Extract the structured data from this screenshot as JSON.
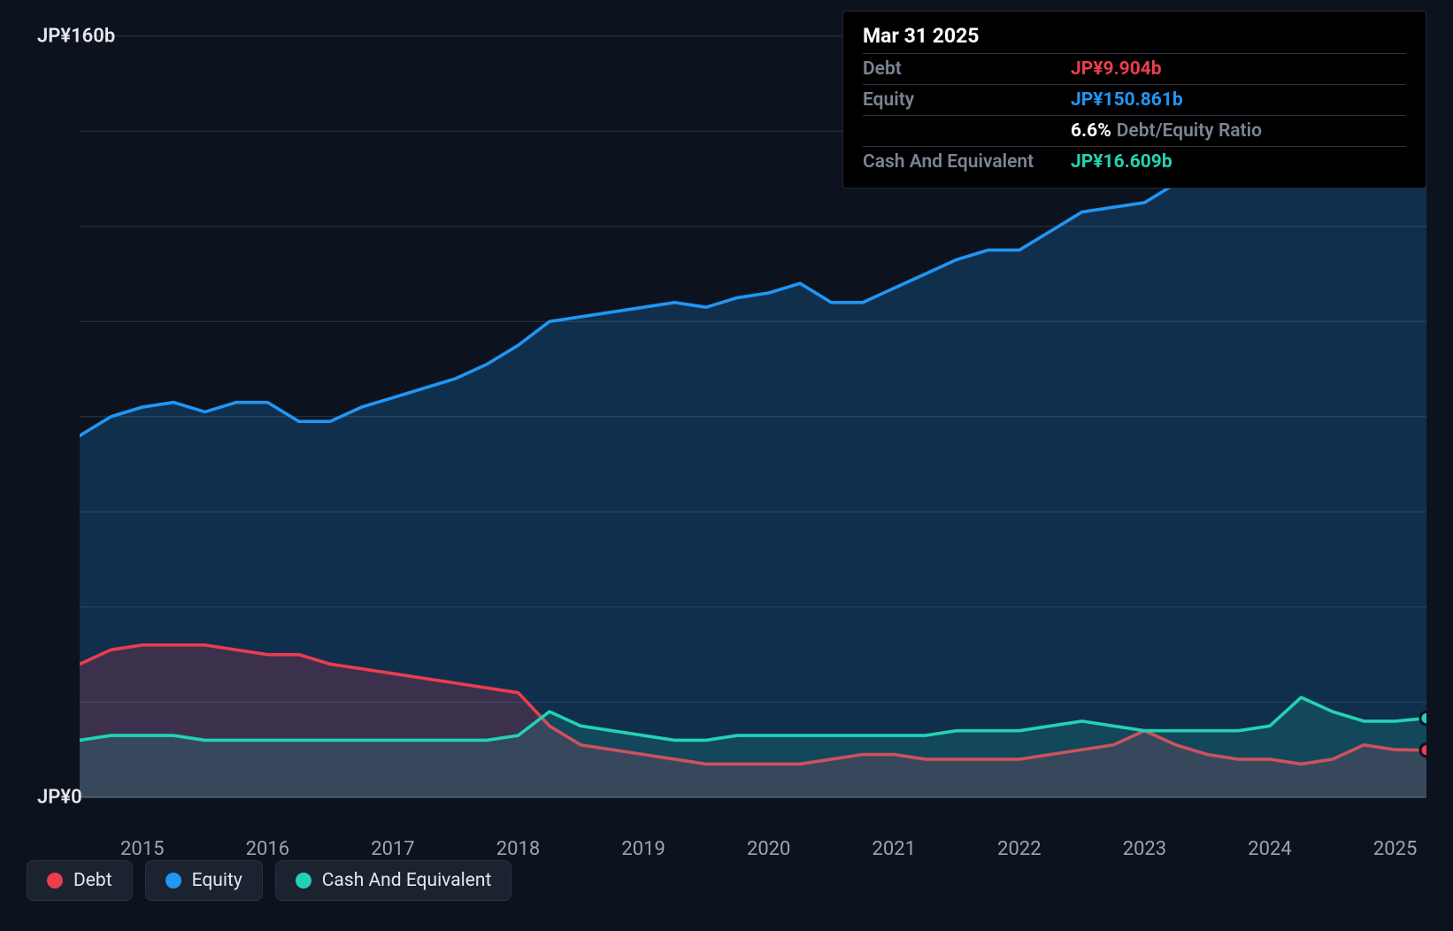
{
  "chart": {
    "type": "area-line",
    "background_color": "#0c131f",
    "grid_color": "#2a3544",
    "baseline_color": "#4b5563",
    "line_width": 3.5,
    "end_marker_radius": 7,
    "y_axis": {
      "min": 0,
      "max": 160,
      "labelled_ticks": [
        0,
        160
      ],
      "tick_step": 20,
      "label_prefix": "JP¥",
      "label_suffix": "b",
      "label_fontsize": 22,
      "label_color": "#e5e7eb",
      "zero_label": "JP¥0",
      "max_label": "JP¥160b"
    },
    "x_axis": {
      "years": [
        2015,
        2016,
        2017,
        2018,
        2019,
        2020,
        2021,
        2022,
        2023,
        2024,
        2025
      ],
      "data_start_year": 2014.5,
      "data_end_year": 2025.25,
      "label_fontsize": 22,
      "label_color": "#9ca3af"
    },
    "series": [
      {
        "key": "equity",
        "label": "Equity",
        "color": "#2196f3",
        "fill_color": "rgba(33,150,243,0.22)",
        "fill_to_zero": true,
        "end_marker": true,
        "data": [
          [
            2014.5,
            76
          ],
          [
            2014.75,
            80
          ],
          [
            2015.0,
            82
          ],
          [
            2015.25,
            83
          ],
          [
            2015.5,
            81
          ],
          [
            2015.75,
            83
          ],
          [
            2016.0,
            83
          ],
          [
            2016.25,
            79
          ],
          [
            2016.5,
            79
          ],
          [
            2016.75,
            82
          ],
          [
            2017.0,
            84
          ],
          [
            2017.25,
            86
          ],
          [
            2017.5,
            88
          ],
          [
            2017.75,
            91
          ],
          [
            2018.0,
            95
          ],
          [
            2018.25,
            100
          ],
          [
            2018.5,
            101
          ],
          [
            2018.75,
            102
          ],
          [
            2019.0,
            103
          ],
          [
            2019.25,
            104
          ],
          [
            2019.5,
            103
          ],
          [
            2019.75,
            105
          ],
          [
            2020.0,
            106
          ],
          [
            2020.25,
            108
          ],
          [
            2020.5,
            104
          ],
          [
            2020.75,
            104
          ],
          [
            2021.0,
            107
          ],
          [
            2021.25,
            110
          ],
          [
            2021.5,
            113
          ],
          [
            2021.75,
            115
          ],
          [
            2022.0,
            115
          ],
          [
            2022.25,
            119
          ],
          [
            2022.5,
            123
          ],
          [
            2022.75,
            124
          ],
          [
            2023.0,
            125
          ],
          [
            2023.25,
            129
          ],
          [
            2023.5,
            132
          ],
          [
            2023.75,
            134
          ],
          [
            2024.0,
            136
          ],
          [
            2024.25,
            144
          ],
          [
            2024.5,
            146
          ],
          [
            2024.75,
            147
          ],
          [
            2025.0,
            150
          ],
          [
            2025.25,
            150.861
          ]
        ]
      },
      {
        "key": "debt",
        "label": "Debt",
        "color": "#eb3d4e",
        "fill_color": "rgba(235,61,78,0.20)",
        "fill_to_zero": true,
        "end_marker": true,
        "data": [
          [
            2014.5,
            28
          ],
          [
            2014.75,
            31
          ],
          [
            2015.0,
            32
          ],
          [
            2015.25,
            32
          ],
          [
            2015.5,
            32
          ],
          [
            2015.75,
            31
          ],
          [
            2016.0,
            30
          ],
          [
            2016.25,
            30
          ],
          [
            2016.5,
            28
          ],
          [
            2016.75,
            27
          ],
          [
            2017.0,
            26
          ],
          [
            2017.25,
            25
          ],
          [
            2017.5,
            24
          ],
          [
            2017.75,
            23
          ],
          [
            2018.0,
            22
          ],
          [
            2018.25,
            15
          ],
          [
            2018.5,
            11
          ],
          [
            2018.75,
            10
          ],
          [
            2019.0,
            9
          ],
          [
            2019.25,
            8
          ],
          [
            2019.5,
            7
          ],
          [
            2019.75,
            7
          ],
          [
            2020.0,
            7
          ],
          [
            2020.25,
            7
          ],
          [
            2020.5,
            8
          ],
          [
            2020.75,
            9
          ],
          [
            2021.0,
            9
          ],
          [
            2021.25,
            8
          ],
          [
            2021.5,
            8
          ],
          [
            2021.75,
            8
          ],
          [
            2022.0,
            8
          ],
          [
            2022.25,
            9
          ],
          [
            2022.5,
            10
          ],
          [
            2022.75,
            11
          ],
          [
            2023.0,
            14
          ],
          [
            2023.25,
            11
          ],
          [
            2023.5,
            9
          ],
          [
            2023.75,
            8
          ],
          [
            2024.0,
            8
          ],
          [
            2024.25,
            7
          ],
          [
            2024.5,
            8
          ],
          [
            2024.75,
            11
          ],
          [
            2025.0,
            10
          ],
          [
            2025.25,
            9.904
          ]
        ]
      },
      {
        "key": "cash",
        "label": "Cash And Equivalent",
        "color": "#23d2b4",
        "fill_color": "rgba(35,210,180,0.15)",
        "fill_to_zero": true,
        "end_marker": true,
        "data": [
          [
            2014.5,
            12
          ],
          [
            2014.75,
            13
          ],
          [
            2015.0,
            13
          ],
          [
            2015.25,
            13
          ],
          [
            2015.5,
            12
          ],
          [
            2015.75,
            12
          ],
          [
            2016.0,
            12
          ],
          [
            2016.25,
            12
          ],
          [
            2016.5,
            12
          ],
          [
            2016.75,
            12
          ],
          [
            2017.0,
            12
          ],
          [
            2017.25,
            12
          ],
          [
            2017.5,
            12
          ],
          [
            2017.75,
            12
          ],
          [
            2018.0,
            13
          ],
          [
            2018.25,
            18
          ],
          [
            2018.5,
            15
          ],
          [
            2018.75,
            14
          ],
          [
            2019.0,
            13
          ],
          [
            2019.25,
            12
          ],
          [
            2019.5,
            12
          ],
          [
            2019.75,
            13
          ],
          [
            2020.0,
            13
          ],
          [
            2020.25,
            13
          ],
          [
            2020.5,
            13
          ],
          [
            2020.75,
            13
          ],
          [
            2021.0,
            13
          ],
          [
            2021.25,
            13
          ],
          [
            2021.5,
            14
          ],
          [
            2021.75,
            14
          ],
          [
            2022.0,
            14
          ],
          [
            2022.25,
            15
          ],
          [
            2022.5,
            16
          ],
          [
            2022.75,
            15
          ],
          [
            2023.0,
            14
          ],
          [
            2023.25,
            14
          ],
          [
            2023.5,
            14
          ],
          [
            2023.75,
            14
          ],
          [
            2024.0,
            15
          ],
          [
            2024.25,
            21
          ],
          [
            2024.5,
            18
          ],
          [
            2024.75,
            16
          ],
          [
            2025.0,
            16
          ],
          [
            2025.25,
            16.609
          ]
        ]
      }
    ]
  },
  "tooltip": {
    "date": "Mar 31 2025",
    "rows": [
      {
        "label": "Debt",
        "value": "JP¥9.904b",
        "color": "#eb3d4e"
      },
      {
        "label": "Equity",
        "value": "JP¥150.861b",
        "color": "#2196f3"
      }
    ],
    "ratio": {
      "pct": "6.6%",
      "label": "Debt/Equity Ratio"
    },
    "cash_row": {
      "label": "Cash And Equivalent",
      "value": "JP¥16.609b",
      "color": "#23d2b4"
    }
  },
  "legend": {
    "bg": "#1b2230",
    "border": "#2a3240",
    "items": [
      {
        "key": "debt",
        "label": "Debt",
        "color": "#eb3d4e"
      },
      {
        "key": "equity",
        "label": "Equity",
        "color": "#2196f3"
      },
      {
        "key": "cash",
        "label": "Cash And Equivalent",
        "color": "#23d2b4"
      }
    ]
  }
}
